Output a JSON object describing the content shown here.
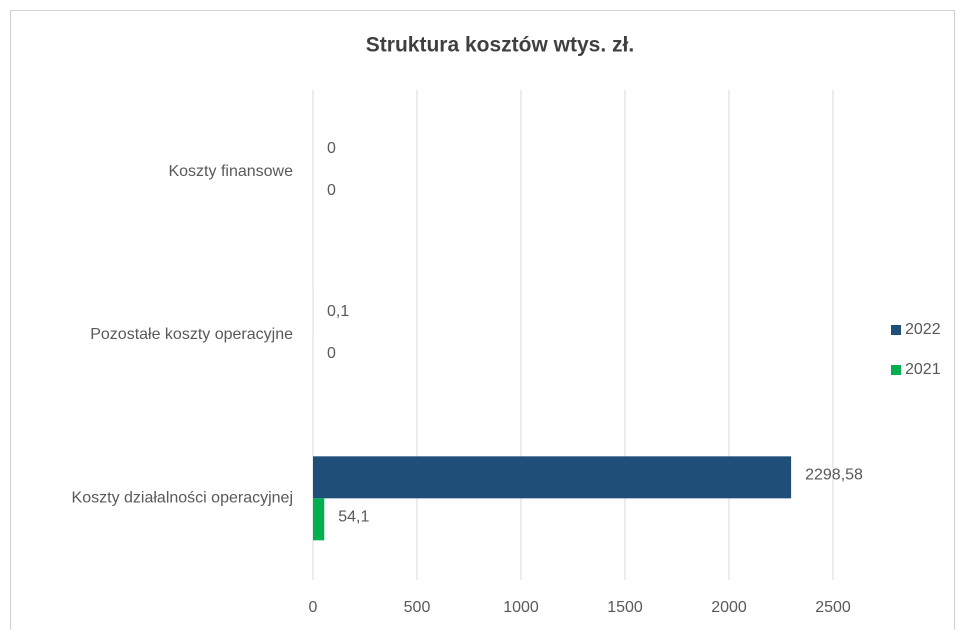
{
  "chart_data": {
    "type": "bar",
    "orientation": "horizontal",
    "title": "Struktura kosztów  wtys. zł.",
    "categories": [
      "Koszty finansowe",
      "Pozostałe koszty operacyjne",
      "Koszty działalności operacyjnej"
    ],
    "series": [
      {
        "name": "2022",
        "color": "#1f4e79",
        "values": [
          0,
          0.1,
          2298.58
        ],
        "value_labels": [
          "0",
          "0,1",
          "2298,58"
        ]
      },
      {
        "name": "2021",
        "color": "#00b050",
        "values": [
          0,
          0,
          54.1
        ],
        "value_labels": [
          "0",
          "0",
          "54,1"
        ]
      }
    ],
    "xlim": [
      0,
      2500
    ],
    "xticks": [
      0,
      500,
      1000,
      1500,
      2000,
      2500
    ],
    "grid": true,
    "legend": "right"
  }
}
